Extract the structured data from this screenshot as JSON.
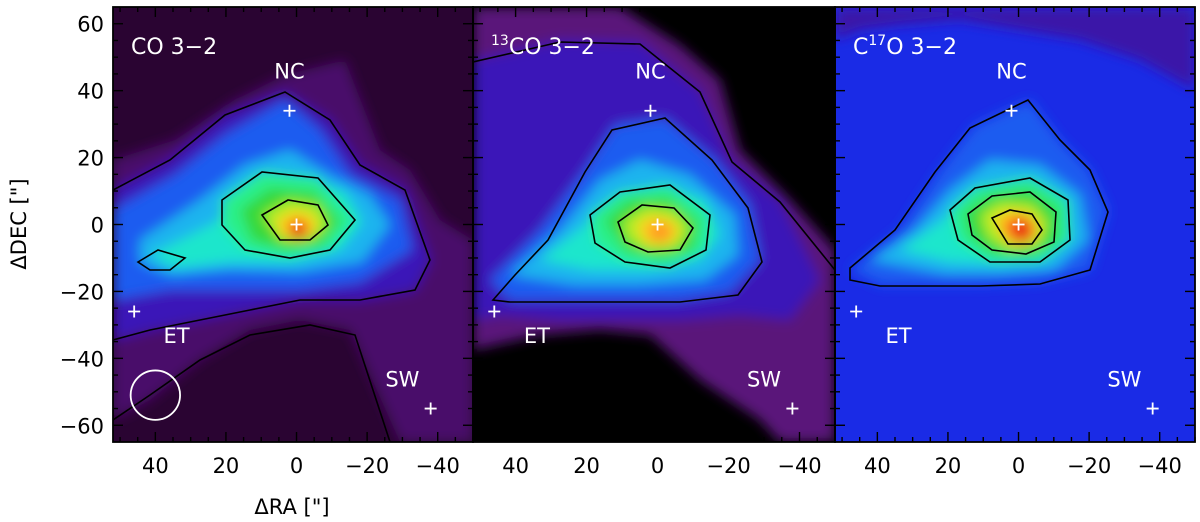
{
  "chart_data": {
    "type": "heatmap",
    "shared_axes": {
      "xlabel": "ΔRA [\"]",
      "ylabel": "ΔDEC [\"]",
      "x_direction": "decreasing-right",
      "xlim": [
        52,
        -50
      ],
      "ylim": [
        -65,
        65
      ],
      "x_ticks": [
        40,
        20,
        0,
        -20,
        -40
      ],
      "x_tick_labels": [
        "40",
        "20",
        "0",
        "−20",
        "−40"
      ],
      "y_ticks": [
        60,
        40,
        20,
        0,
        -20,
        -40,
        -60
      ],
      "y_tick_labels": [
        "60",
        "40",
        "20",
        "0",
        "−20",
        "−40",
        "−60"
      ],
      "colormap": "rainbow: black → purple → blue → cyan → green → yellow → red"
    },
    "panels": [
      {
        "title_sup": "",
        "title": "CO 3−2",
        "background": "#2a0432",
        "beam": {
          "x": 40,
          "y": -51,
          "radius": 7
        },
        "hotspot": {
          "x": -3,
          "y": -3
        },
        "markers": [
          {
            "label": "NC",
            "x": 2,
            "y": 34,
            "label_x": 2,
            "label_y": 46
          },
          {
            "label": "",
            "x": 0,
            "y": 0
          },
          {
            "label": "ET",
            "x": 46,
            "y": -26,
            "label_x": 34,
            "label_y": -33
          },
          {
            "label": "SW",
            "x": -38,
            "y": -55,
            "label_x": -30,
            "label_y": -46
          }
        ]
      },
      {
        "title_sup": "13",
        "title": "CO 3−2",
        "background": "#000000",
        "hotspot": {
          "x": -3,
          "y": -3
        },
        "markers": [
          {
            "label": "NC",
            "x": 2,
            "y": 34,
            "label_x": 2,
            "label_y": 46
          },
          {
            "label": "",
            "x": 0,
            "y": 0
          },
          {
            "label": "ET",
            "x": 46,
            "y": -26,
            "label_x": 34,
            "label_y": -33
          },
          {
            "label": "SW",
            "x": -38,
            "y": -55,
            "label_x": -30,
            "label_y": -46
          }
        ]
      },
      {
        "title_sup": "17",
        "title_prefix": "C",
        "title": "O 3−2",
        "background": "#1a2be6",
        "hotspot": {
          "x": -2,
          "y": 0
        },
        "markers": [
          {
            "label": "NC",
            "x": 2,
            "y": 34,
            "label_x": 2,
            "label_y": 46
          },
          {
            "label": "",
            "x": 0,
            "y": 0
          },
          {
            "label": "ET",
            "x": 46,
            "y": -26,
            "label_x": 34,
            "label_y": -33
          },
          {
            "label": "SW",
            "x": -38,
            "y": -55,
            "label_x": -30,
            "label_y": -46
          }
        ]
      }
    ]
  }
}
